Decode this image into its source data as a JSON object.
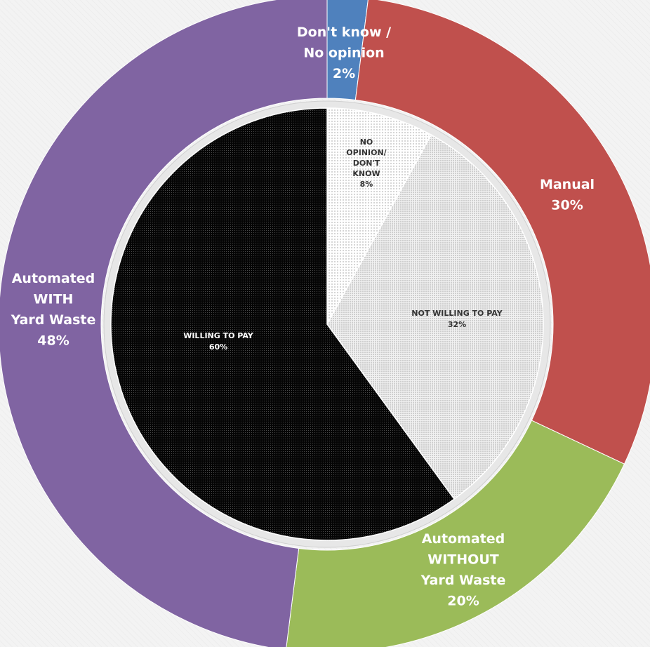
{
  "chart_data": [
    {
      "type": "pie",
      "ring": "outer",
      "categories": [
        "Don't know / No opinion",
        "Manual",
        "Automated WITHOUT Yard Waste",
        "Automated WITH Yard Waste"
      ],
      "values": [
        2,
        30,
        20,
        48
      ],
      "colors": [
        "#4f81bd",
        "#c0504d",
        "#9bbb59",
        "#8064a2"
      ],
      "labels": [
        {
          "lines": [
            "Don't know /",
            "No opinion",
            "2%"
          ]
        },
        {
          "lines": [
            "Manual",
            "30%"
          ]
        },
        {
          "lines": [
            "Automated",
            "WITHOUT",
            "Yard Waste",
            "20%"
          ]
        },
        {
          "lines": [
            "Automated",
            "WITH",
            "Yard Waste",
            "48%"
          ]
        }
      ]
    },
    {
      "type": "pie",
      "ring": "inner",
      "categories": [
        "No opinion / Don't know",
        "Not willing to pay",
        "Willing to pay"
      ],
      "values": [
        8,
        32,
        60
      ],
      "colors": [
        "#ffffff",
        "#e8e8e8",
        "#000000"
      ],
      "labels": [
        {
          "lines": [
            "NO",
            "OPINION/",
            "DON'T",
            "KNOW",
            "8%"
          ]
        },
        {
          "lines": [
            "NOT WILLING TO PAY",
            "32%"
          ]
        },
        {
          "lines": [
            "WILLING TO PAY",
            "60%"
          ]
        }
      ]
    }
  ]
}
